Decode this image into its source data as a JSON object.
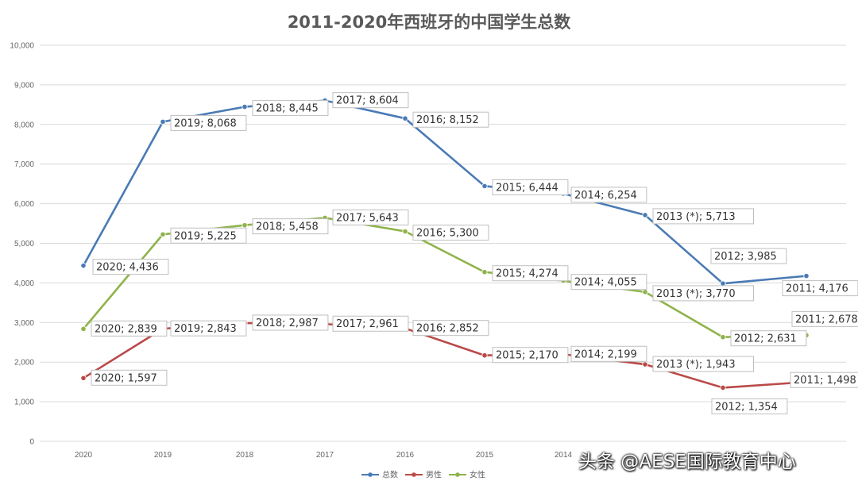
{
  "chart_data": {
    "type": "line",
    "title": "2011-2020年西班牙的中国学生总数",
    "categories": [
      "2020",
      "2019",
      "2018",
      "2017",
      "2016",
      "2015",
      "2014",
      "2013 (*)",
      "2012",
      "2011"
    ],
    "x_tick_labels": [
      "2020",
      "2019",
      "2018",
      "2017",
      "2016",
      "2015",
      "2014",
      "",
      "",
      ""
    ],
    "ylim": [
      0,
      10000
    ],
    "y_ticks": [
      "0",
      "1,000",
      "2,000",
      "3,000",
      "4,000",
      "5,000",
      "6,000",
      "7,000",
      "8,000",
      "9,000",
      "10,000"
    ],
    "grid": true,
    "legend_position": "bottom",
    "series": [
      {
        "name": "总数",
        "color": "#4a7ab5",
        "values": [
          4436,
          8068,
          8445,
          8604,
          8152,
          6444,
          6254,
          5713,
          3985,
          4176
        ],
        "labels": [
          "2020; 4,436",
          "2019; 8,068",
          "2018; 8,445",
          "2017; 8,604",
          "2016; 8,152",
          "2015; 6,444",
          "2014; 6,254",
          "2013 (*); 5,713",
          "2012; 3,985",
          "2011; 4,176"
        ]
      },
      {
        "name": "男性",
        "color": "#b94a48",
        "values": [
          1597,
          2843,
          2987,
          2961,
          2852,
          2170,
          2199,
          1943,
          1354,
          1498
        ],
        "labels": [
          "2020; 1,597",
          "2019; 2,843",
          "2018; 2,987",
          "2017; 2,961",
          "2016; 2,852",
          "2015; 2,170",
          "2014; 2,199",
          "2013 (*); 1,943",
          "2012; 1,354",
          "2011; 1,498"
        ]
      },
      {
        "name": "女性",
        "color": "#8fb34a",
        "values": [
          2839,
          5225,
          5458,
          5643,
          5300,
          4274,
          4055,
          3770,
          2631,
          2678
        ],
        "labels": [
          "2020; 2,839",
          "2019; 5,225",
          "2018; 5,458",
          "2017; 5,643",
          "2016; 5,300",
          "2015; 4,274",
          "2014; 4,055",
          "2013 (*); 3,770",
          "2012; 2,631",
          "2011; 2,678"
        ]
      }
    ]
  },
  "watermark": "头条 @AESE国际教育中心"
}
